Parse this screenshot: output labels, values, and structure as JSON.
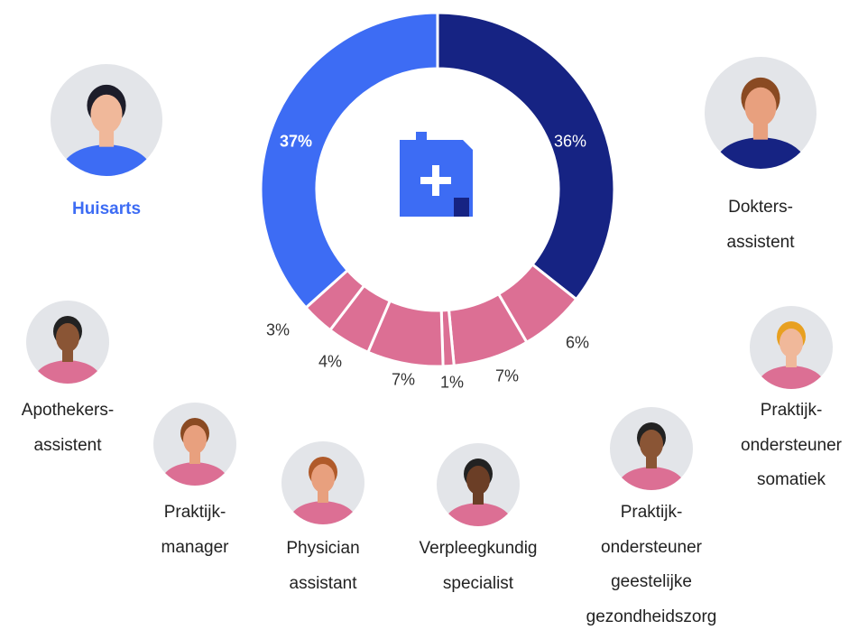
{
  "chart_data": {
    "type": "donut",
    "categories": [
      "Dokters-\nassistent",
      "Praktijk-\nondersteuner\nsomatiek",
      "Praktijk-\nondersteuner\ngeestelijke\ngezondheidszorg",
      "Verpleegkundig\nspecialist",
      "Physician\nassistant",
      "Praktijk-\nmanager",
      "Apothekers-\nassistent",
      "Huisarts"
    ],
    "values": [
      36,
      6,
      7,
      1,
      7,
      4,
      3,
      37
    ],
    "value_labels": [
      "36%",
      "6%",
      "7%",
      "1%",
      "7%",
      "4%",
      "3%",
      "37%"
    ],
    "colors": [
      "#162383",
      "#dc6f94",
      "#dc6f94",
      "#dc6f94",
      "#dc6f94",
      "#dc6f94",
      "#dc6f94",
      "#3d6cf4"
    ],
    "highlight_index": 7
  }
}
